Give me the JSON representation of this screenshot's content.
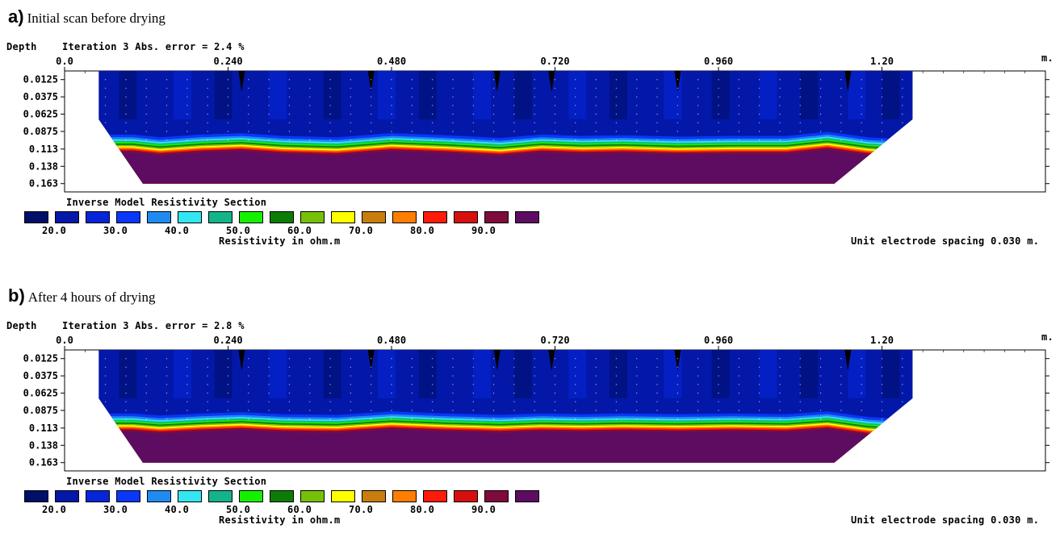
{
  "colors": {
    "palette": [
      "#000f68",
      "#0318a8",
      "#0526d8",
      "#0a37f8",
      "#1f8bf0",
      "#33e6f2",
      "#14b48a",
      "#15f000",
      "#0b7d05",
      "#77c00a",
      "#ffff00",
      "#c87d0e",
      "#ff7d00",
      "#ff1a0a",
      "#d80f0f",
      "#7e0b3c",
      "#5e0c62"
    ],
    "legend_swatches": [
      "#000f68",
      "#0318a8",
      "#0526d8",
      "#0a37f8",
      "#1f8bf0",
      "#33e6f2",
      "#14b48a",
      "#15f000",
      "#0b7d05",
      "#77c00a",
      "#ffff00",
      "#c87d0e",
      "#ff7d00",
      "#ff1a0a",
      "#d80f0f",
      "#7e0b3c",
      "#5e0c62"
    ]
  },
  "panels": [
    {
      "letter": "a)",
      "title": "Initial scan before drying",
      "depth_label": "Depth",
      "iteration_text": "Iteration 3 Abs. error = 2.4 %",
      "x_ticks": [
        "0.0",
        "0.240",
        "0.480",
        "0.720",
        "0.960",
        "1.20"
      ],
      "x_unit": "m.",
      "y_ticks": [
        "0.0125",
        "0.0375",
        "0.0625",
        "0.0875",
        "0.113",
        "0.138",
        "0.163"
      ],
      "section_title": "Inverse Model Resistivity Section",
      "legend_values": [
        "20.0",
        "30.0",
        "40.0",
        "50.0",
        "60.0",
        "70.0",
        "80.0",
        "90.0"
      ],
      "legend_title": "Resistivity in ohm.m",
      "spacing_note": "Unit electrode spacing 0.030 m."
    },
    {
      "letter": "b)",
      "title": "After 4 hours of drying",
      "depth_label": "Depth",
      "iteration_text": "Iteration 3 Abs. error = 2.8 %",
      "x_ticks": [
        "0.0",
        "0.240",
        "0.480",
        "0.720",
        "0.960",
        "1.20"
      ],
      "x_unit": "m.",
      "y_ticks": [
        "0.0125",
        "0.0375",
        "0.0625",
        "0.0875",
        "0.113",
        "0.138",
        "0.163"
      ],
      "section_title": "Inverse Model Resistivity Section",
      "legend_values": [
        "20.0",
        "30.0",
        "40.0",
        "50.0",
        "60.0",
        "70.0",
        "80.0",
        "90.0"
      ],
      "legend_title": "Resistivity in ohm.m",
      "spacing_note": "Unit electrode spacing 0.030 m."
    }
  ],
  "chart_data": [
    {
      "type": "heatmap",
      "title": "Initial scan before drying",
      "xlabel": "",
      "ylabel": "Depth",
      "x_unit": "m",
      "xlim": [
        0.0,
        1.44
      ],
      "ylim": [
        0.0,
        0.175
      ],
      "x_ticks": [
        0.0,
        0.24,
        0.48,
        0.72,
        0.96,
        1.2
      ],
      "y_ticks": [
        0.0125,
        0.0375,
        0.0625,
        0.0875,
        0.113,
        0.138,
        0.163
      ],
      "iteration": 3,
      "abs_error_percent": 2.4,
      "electrode_spacing_m": 0.03,
      "colorbar": {
        "label": "Resistivity in ohm.m",
        "ticks": [
          20.0,
          30.0,
          40.0,
          50.0,
          60.0,
          70.0,
          80.0,
          90.0
        ]
      },
      "interface_depth_m": {
        "x": [
          0.1,
          0.14,
          0.2,
          0.26,
          0.32,
          0.4,
          0.48,
          0.56,
          0.64,
          0.7,
          0.76,
          0.82,
          0.9,
          0.98,
          1.06,
          1.12,
          1.18,
          1.22,
          1.26
        ],
        "depth": [
          0.104,
          0.108,
          0.104,
          0.102,
          0.106,
          0.108,
          0.102,
          0.105,
          0.109,
          0.104,
          0.106,
          0.105,
          0.107,
          0.106,
          0.106,
          0.1,
          0.108,
          0.11,
          0.102
        ]
      },
      "upper_zone_resistivity_ohm_m": 20,
      "lower_zone_resistivity_ohm_m": 90
    },
    {
      "type": "heatmap",
      "title": "After 4 hours of drying",
      "xlabel": "",
      "ylabel": "Depth",
      "x_unit": "m",
      "xlim": [
        0.0,
        1.44
      ],
      "ylim": [
        0.0,
        0.175
      ],
      "x_ticks": [
        0.0,
        0.24,
        0.48,
        0.72,
        0.96,
        1.2
      ],
      "y_ticks": [
        0.0125,
        0.0375,
        0.0625,
        0.0875,
        0.113,
        0.138,
        0.163
      ],
      "iteration": 3,
      "abs_error_percent": 2.8,
      "electrode_spacing_m": 0.03,
      "colorbar": {
        "label": "Resistivity in ohm.m",
        "ticks": [
          20.0,
          30.0,
          40.0,
          50.0,
          60.0,
          70.0,
          80.0,
          90.0
        ]
      },
      "interface_depth_m": {
        "x": [
          0.1,
          0.14,
          0.2,
          0.26,
          0.32,
          0.4,
          0.48,
          0.56,
          0.64,
          0.7,
          0.76,
          0.82,
          0.9,
          0.98,
          1.06,
          1.12,
          1.18,
          1.22,
          1.26
        ],
        "depth": [
          0.104,
          0.107,
          0.104,
          0.102,
          0.105,
          0.106,
          0.101,
          0.104,
          0.106,
          0.104,
          0.105,
          0.104,
          0.105,
          0.104,
          0.105,
          0.101,
          0.109,
          0.111,
          0.102
        ]
      },
      "upper_zone_resistivity_ohm_m": 20,
      "lower_zone_resistivity_ohm_m": 90
    }
  ]
}
